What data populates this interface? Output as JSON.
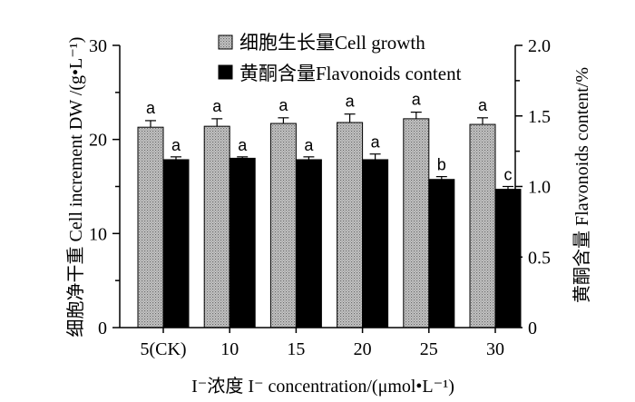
{
  "chart_data": {
    "type": "bar",
    "categories": [
      "5(CK)",
      "10",
      "15",
      "20",
      "25",
      "30"
    ],
    "xlabel": "I⁻浓度  I⁻ concentration/(μmol•L⁻¹)",
    "ylabel_left": "细胞净干重  Cell increment DW /(g•L⁻¹)",
    "ylabel_right": "黄酮含量 Flavonoids content/%",
    "ylim_left": [
      0,
      30
    ],
    "yticks_left": [
      0,
      10,
      20,
      30
    ],
    "ylim_right": [
      0,
      2.0
    ],
    "yticks_right": [
      "0",
      "0.5",
      "1.0",
      "1.5",
      "2.0"
    ],
    "legend_position": "top-center",
    "series": [
      {
        "name": "细胞生长量Cell growth",
        "axis": "left",
        "color": "#b4b4b4",
        "pattern": "dotted-gray",
        "values": [
          21.3,
          21.4,
          21.7,
          21.8,
          22.2,
          21.6
        ],
        "errors": [
          0.7,
          0.8,
          0.6,
          0.9,
          0.7,
          0.7
        ],
        "significance": [
          "a",
          "a",
          "a",
          "a",
          "a",
          "a"
        ]
      },
      {
        "name": "黄酮含量Flavonoids content",
        "axis": "right",
        "color": "#000000",
        "pattern": "solid",
        "values": [
          1.19,
          1.2,
          1.19,
          1.19,
          1.05,
          0.98
        ],
        "errors": [
          0.02,
          0.01,
          0.02,
          0.04,
          0.02,
          0.02
        ],
        "significance": [
          "a",
          "a",
          "a",
          "a",
          "b",
          "c"
        ]
      }
    ]
  }
}
